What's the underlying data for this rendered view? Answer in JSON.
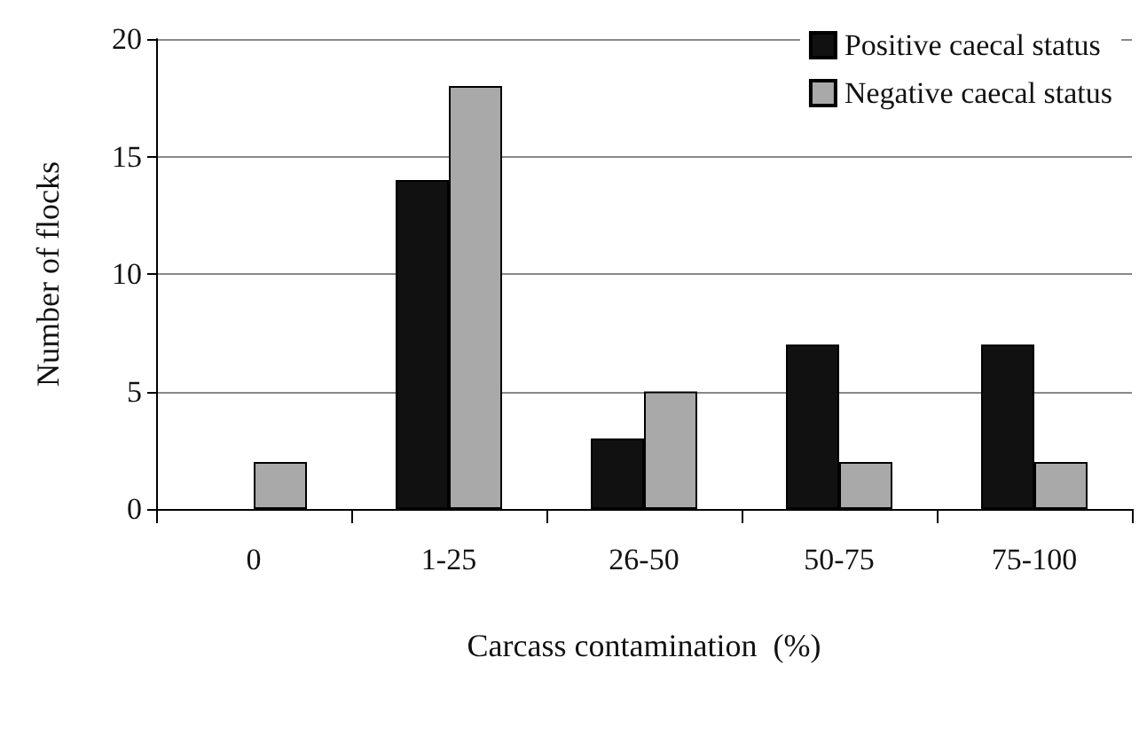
{
  "chart_data": {
    "type": "bar",
    "xlabel": "Carcass contamination  (%)",
    "ylabel": "Number of flocks",
    "categories": [
      "0",
      "1-25",
      "26-50",
      "50-75",
      "75-100"
    ],
    "series": [
      {
        "name": "Positive caecal status",
        "color": "#111111",
        "values": [
          0,
          14,
          3,
          7,
          7
        ]
      },
      {
        "name": "Negative caecal status",
        "color": "#a9a9a9",
        "values": [
          2,
          18,
          5,
          2,
          2
        ]
      }
    ],
    "ylim": [
      0,
      20
    ],
    "yticks": [
      0,
      5,
      10,
      15,
      20
    ],
    "grid": "y",
    "legend": "top right"
  }
}
